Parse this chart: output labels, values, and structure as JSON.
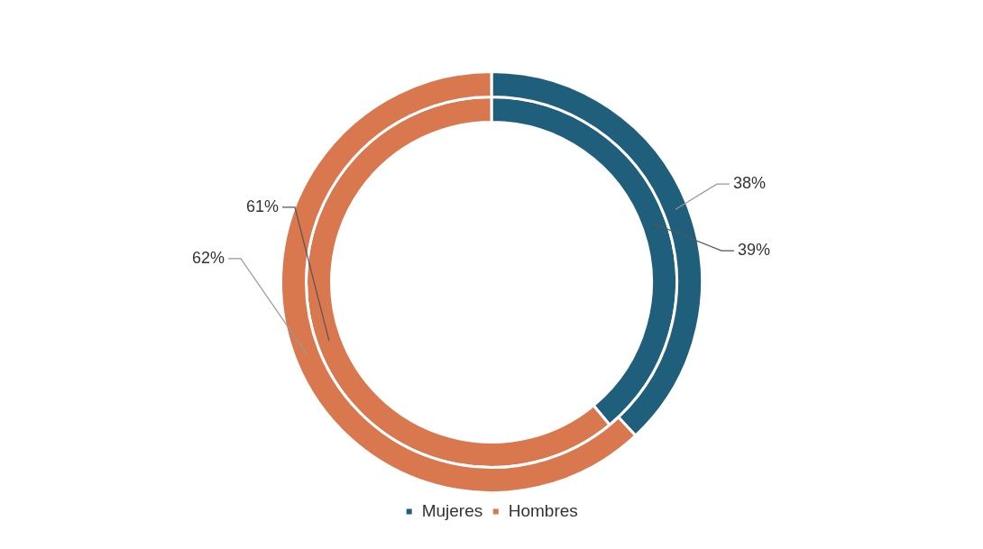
{
  "chart_data": {
    "type": "donut",
    "categories": [
      "Mujeres",
      "Hombres"
    ],
    "series": [
      {
        "values": [
          38,
          62
        ],
        "colors": [
          "#1f5f7c",
          "#d9774f"
        ],
        "value_labels": [
          "38%",
          "62%"
        ]
      },
      {
        "values": [
          39,
          61
        ],
        "colors": [
          "#1f5f7c",
          "#d9774f"
        ],
        "value_labels": [
          "39%",
          "61%"
        ]
      }
    ],
    "legend": "bottom"
  }
}
